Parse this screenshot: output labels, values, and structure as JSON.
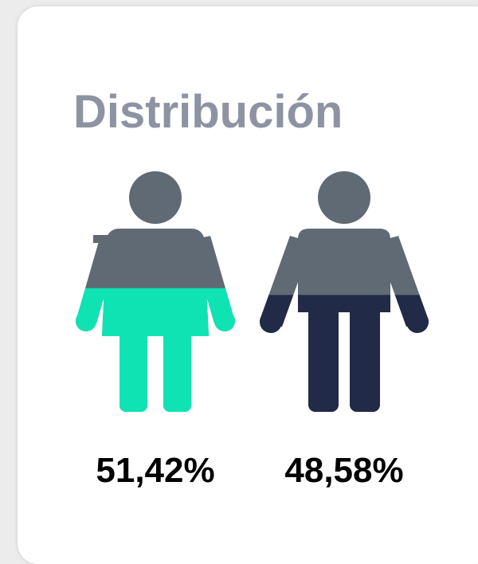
{
  "chart_data": {
    "type": "pictogram",
    "title": "Distribución",
    "values": [
      51.42,
      48.58
    ],
    "value_labels": [
      "51,42%",
      "48,58%"
    ],
    "colors": [
      "#10e3b3",
      "#212a47"
    ],
    "base_color": "#5f6a74",
    "ylim": [
      0,
      100
    ]
  }
}
